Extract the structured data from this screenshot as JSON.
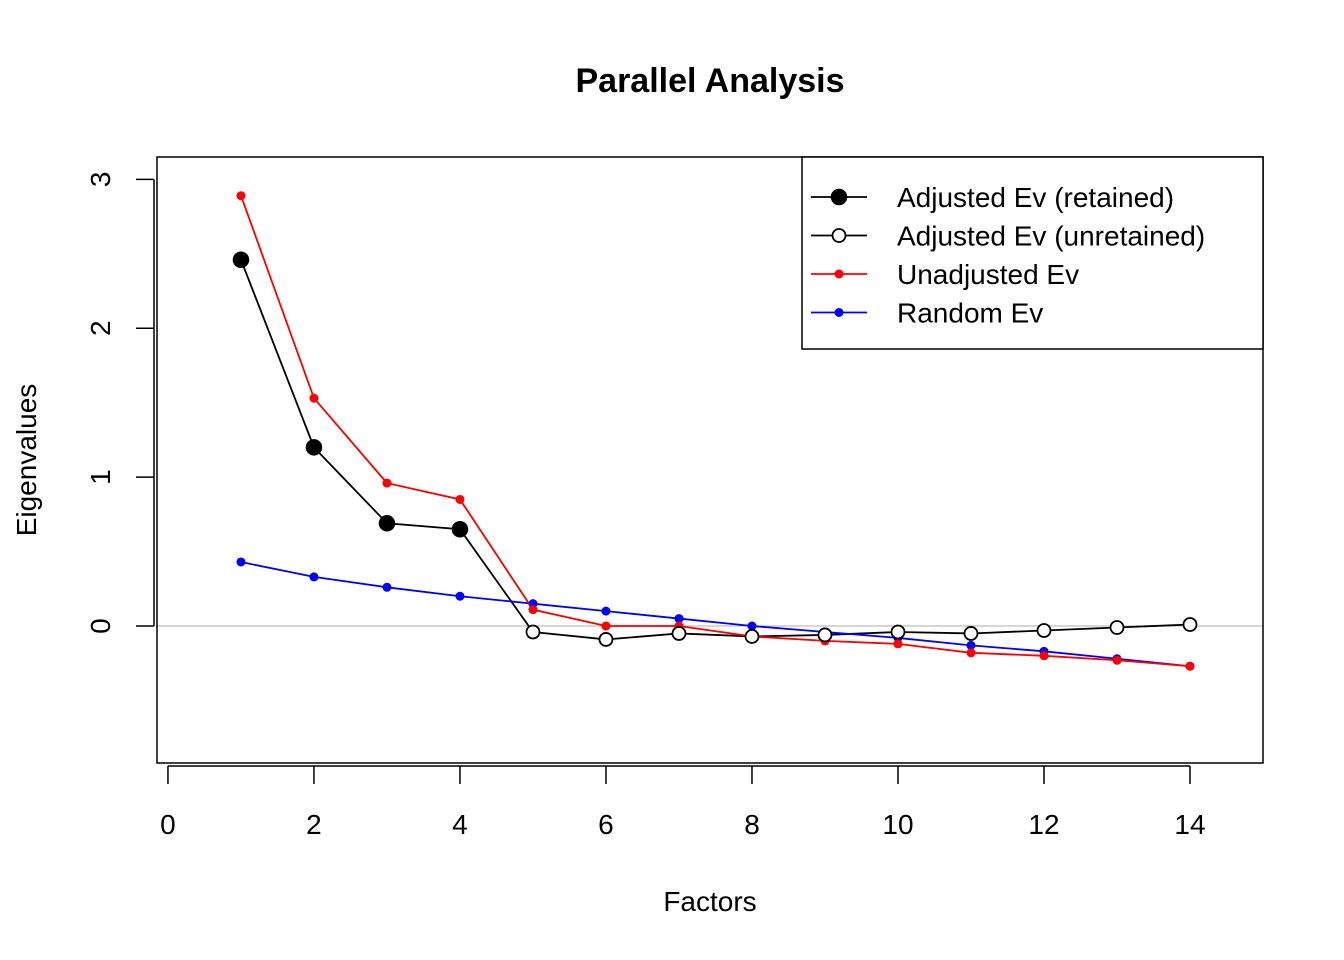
{
  "chart_data": {
    "type": "line",
    "title": "Parallel Analysis",
    "xlabel": "Factors",
    "ylabel": "Eigenvalues",
    "xlim": [
      -0.15,
      15.0
    ],
    "ylim": [
      -0.92,
      3.15
    ],
    "xticks": [
      0,
      2,
      4,
      6,
      8,
      10,
      12,
      14
    ],
    "yticks": [
      0,
      1,
      2,
      3
    ],
    "reference_line_y": 0,
    "legend_position": "top-right",
    "series": [
      {
        "name": "Adjusted Ev (retained)",
        "color": "#000000",
        "marker": "filled-large",
        "x": [
          1,
          2,
          3,
          4
        ],
        "values": [
          2.46,
          1.2,
          0.69,
          0.65
        ]
      },
      {
        "name": "Adjusted Ev (unretained)",
        "color": "#000000",
        "marker": "open",
        "x": [
          5,
          6,
          7,
          8,
          9,
          10,
          11,
          12,
          13,
          14
        ],
        "values": [
          -0.04,
          -0.09,
          -0.05,
          -0.07,
          -0.06,
          -0.04,
          -0.05,
          -0.03,
          -0.01,
          0.01
        ]
      },
      {
        "name": "Unadjusted Ev",
        "color": "#ff0000",
        "marker": "filled-small",
        "x": [
          1,
          2,
          3,
          4,
          5,
          6,
          7,
          8,
          9,
          10,
          11,
          12,
          13,
          14
        ],
        "values": [
          2.89,
          1.53,
          0.96,
          0.85,
          0.11,
          0.0,
          0.0,
          -0.07,
          -0.1,
          -0.12,
          -0.18,
          -0.2,
          -0.23,
          -0.27
        ]
      },
      {
        "name": "Random Ev",
        "color": "#0000ff",
        "marker": "filled-small",
        "x": [
          1,
          2,
          3,
          4,
          5,
          6,
          7,
          8,
          9,
          10,
          11,
          12,
          13,
          14
        ],
        "values": [
          0.43,
          0.33,
          0.26,
          0.2,
          0.15,
          0.1,
          0.05,
          0.0,
          -0.04,
          -0.08,
          -0.13,
          -0.17,
          -0.22,
          -0.27
        ]
      }
    ]
  }
}
